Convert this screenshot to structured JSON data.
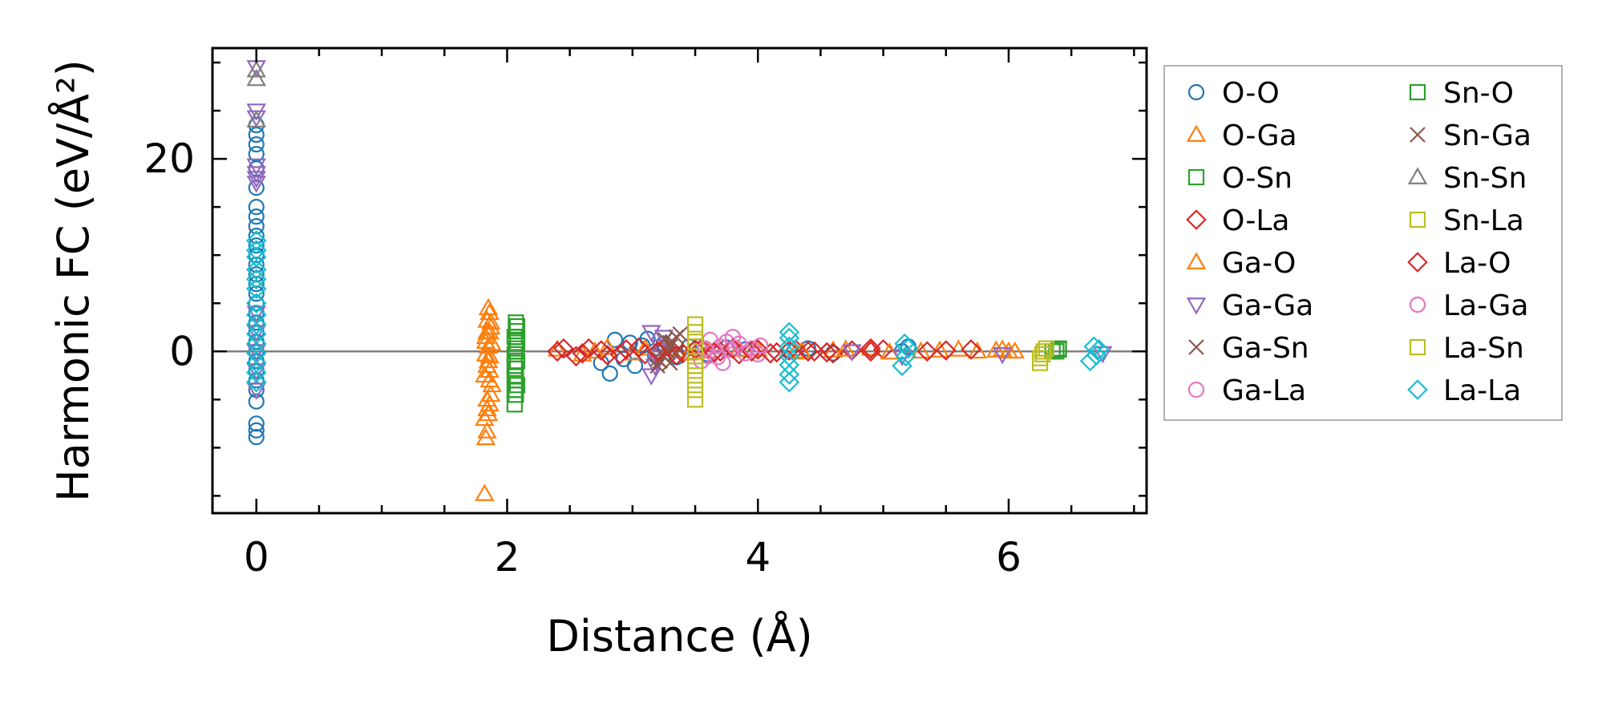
{
  "chart_data": {
    "type": "scatter",
    "title": "",
    "xlabel": "Distance (Å)",
    "ylabel": "Harmonic FC (eV/Å²)",
    "xlim": [
      -0.35,
      7.1
    ],
    "ylim": [
      -16.8,
      31.5
    ],
    "xticks": [
      0,
      2,
      4,
      6
    ],
    "xtick_labels": [
      "0",
      "2",
      "4",
      "6"
    ],
    "yticks": [
      0,
      20
    ],
    "ytick_labels": [
      "0",
      "20"
    ],
    "grid": false,
    "zero_line": true,
    "legend_placement": "outside-right",
    "series": [
      {
        "name": "O-O",
        "marker": "circle",
        "color": "#1f77b4",
        "x": [
          0,
          0,
          0,
          0,
          0,
          0,
          0,
          0,
          0,
          0,
          0,
          0,
          0,
          0,
          0,
          0,
          0,
          0,
          0,
          0,
          0,
          0,
          0,
          0,
          0,
          0,
          0,
          0,
          0,
          0,
          2.75,
          2.82,
          2.86,
          2.93,
          2.98,
          3.02,
          3.08,
          3.12,
          3.18,
          3.25,
          3.35,
          3.45,
          3.6,
          3.75,
          3.9,
          4.25,
          4.4,
          4.6,
          5.15,
          5.2
        ],
        "y": [
          -8.9,
          -8.2,
          -7.5,
          -5.2,
          -4.0,
          -3.0,
          -2.0,
          -1.0,
          0,
          1.0,
          2.0,
          3.0,
          4.0,
          5.0,
          6.0,
          7.0,
          8.0,
          9.0,
          10.0,
          11.0,
          12.0,
          13.0,
          14.0,
          15.0,
          17.0,
          19.0,
          20.5,
          21.5,
          22.5,
          23.5,
          -1.2,
          -2.3,
          1.2,
          -0.8,
          0.9,
          -1.5,
          0.6,
          1.3,
          -0.4,
          0.8,
          -0.6,
          0.5,
          -0.3,
          0.4,
          0.2,
          0.0,
          0.3,
          -0.2,
          0.0,
          0.5
        ]
      },
      {
        "name": "O-Ga",
        "marker": "triangle-up",
        "color": "#ff7f0e",
        "x": [
          1.82,
          1.83,
          1.84,
          1.85,
          1.86,
          1.87,
          1.88,
          1.82,
          1.84,
          1.86,
          1.85,
          1.83,
          1.87,
          1.84,
          1.86,
          1.85,
          1.83,
          1.88,
          1.84,
          1.86,
          2.4,
          2.6,
          2.8,
          3.0,
          3.3,
          3.6,
          4.0,
          4.3,
          4.6,
          4.9,
          5.3,
          5.6,
          5.9,
          6.0
        ],
        "y": [
          -14.8,
          -9.0,
          -8.3,
          -6.5,
          -5.5,
          -4.5,
          -3.5,
          -2.5,
          -1.5,
          -0.5,
          0.5,
          1.5,
          2.5,
          3.2,
          4.0,
          4.5,
          -0.3,
          0.8,
          2.0,
          -2.0,
          0.2,
          -0.3,
          0.4,
          -0.2,
          0.3,
          0.0,
          0.2,
          -0.1,
          0.1,
          0.3,
          0.0,
          0.2,
          0.1,
          0.0
        ]
      },
      {
        "name": "O-Sn",
        "marker": "square",
        "color": "#2ca02c",
        "x": [
          2.06,
          2.07,
          2.08,
          2.06,
          2.07,
          2.08,
          2.06,
          2.07,
          2.08,
          2.06,
          2.07,
          2.08,
          2.07,
          2.06,
          2.08,
          6.38,
          6.4
        ],
        "y": [
          -5.5,
          -4.5,
          -3.5,
          -2.6,
          -1.8,
          -1.0,
          -0.3,
          0.3,
          0.9,
          1.5,
          2.1,
          2.6,
          3.0,
          -4.0,
          1.2,
          0.0,
          0.3
        ]
      },
      {
        "name": "O-La",
        "marker": "diamond",
        "color": "#d62728",
        "x": [
          2.4,
          2.55,
          2.65,
          2.8,
          2.95,
          3.1,
          3.25,
          3.4,
          3.55,
          3.7,
          3.85,
          4.0,
          4.15,
          4.3,
          4.45,
          4.6,
          4.75,
          4.9,
          5.0
        ],
        "y": [
          0.0,
          -0.5,
          0.3,
          -0.4,
          0.2,
          -0.3,
          0.4,
          -0.2,
          0.3,
          0.0,
          -0.3,
          0.2,
          -0.1,
          0.2,
          0.0,
          -0.2,
          0.1,
          0.0,
          0.2
        ]
      },
      {
        "name": "Ga-O",
        "marker": "triangle-up",
        "color": "#ff7f0e",
        "x": [
          1.82,
          1.84,
          1.86,
          1.85,
          1.83,
          1.87,
          1.84,
          1.86,
          2.7,
          3.1,
          3.45,
          3.85,
          4.35,
          4.7,
          5.05,
          5.45,
          5.75,
          5.95,
          6.05
        ],
        "y": [
          -7.0,
          -5.0,
          -3.0,
          -1.0,
          1.0,
          3.0,
          -6.0,
          2.0,
          0.0,
          0.3,
          -0.2,
          0.2,
          0.0,
          0.2,
          -0.1,
          0.1,
          0.0,
          0.2,
          0.0
        ]
      },
      {
        "name": "Ga-Ga",
        "marker": "triangle-down",
        "color": "#9467bd",
        "x": [
          0,
          0,
          0,
          0,
          0,
          0,
          0,
          0,
          0,
          0,
          0,
          0,
          3.15,
          3.18,
          3.2,
          3.22,
          3.25,
          3.15,
          3.2,
          4.75,
          5.15,
          5.95,
          6.75
        ],
        "y": [
          -4.0,
          -2.0,
          0.0,
          2.0,
          4.0,
          17.5,
          18.0,
          18.5,
          19.3,
          24.3,
          25.0,
          29.5,
          -2.5,
          -1.5,
          -0.5,
          0.5,
          1.5,
          2.0,
          -1.0,
          0.0,
          -0.5,
          -0.3,
          -0.2
        ]
      },
      {
        "name": "Ga-Sn",
        "marker": "x",
        "color": "#8c564b",
        "x": [
          3.2,
          3.22,
          3.25,
          3.28,
          3.3,
          3.32,
          3.35,
          3.38,
          3.3,
          3.26
        ],
        "y": [
          -1.5,
          -1.0,
          -0.5,
          0.0,
          0.5,
          1.0,
          1.5,
          1.8,
          -1.2,
          1.2
        ]
      },
      {
        "name": "Ga-La",
        "marker": "circle",
        "color": "#e377c2",
        "x": [
          3.55,
          3.6,
          3.65,
          3.7,
          3.75,
          3.8,
          3.85,
          3.95,
          4.0,
          3.62,
          3.72,
          3.78
        ],
        "y": [
          -1.0,
          -0.5,
          0.0,
          0.5,
          1.0,
          1.5,
          0.8,
          0.3,
          -0.3,
          1.2,
          -1.2,
          0.2
        ]
      },
      {
        "name": "Sn-O",
        "marker": "square",
        "color": "#2ca02c",
        "x": [
          2.06,
          2.07,
          2.08,
          2.07,
          6.35,
          6.4
        ],
        "y": [
          -1.5,
          0.0,
          1.5,
          -3.0,
          0.0,
          0.2
        ]
      },
      {
        "name": "Sn-Ga",
        "marker": "x",
        "color": "#8c564b",
        "x": [
          3.2,
          3.25,
          3.3,
          3.35
        ],
        "y": [
          -0.8,
          0.2,
          0.9,
          -0.2
        ]
      },
      {
        "name": "Sn-Sn",
        "marker": "triangle-up",
        "color": "#7f7f7f",
        "x": [
          0,
          0,
          0
        ],
        "y": [
          24.0,
          28.3,
          29.2
        ]
      },
      {
        "name": "Sn-La",
        "marker": "square",
        "color": "#bcbd22",
        "x": [
          3.5,
          3.5,
          3.5,
          3.5,
          3.5,
          3.5,
          3.5,
          3.5,
          3.5,
          6.25,
          6.27,
          6.3
        ],
        "y": [
          -5.0,
          -4.0,
          -3.0,
          -2.0,
          -1.0,
          0.0,
          1.0,
          2.0,
          2.8,
          -1.2,
          -0.3,
          0.3
        ]
      },
      {
        "name": "La-O",
        "marker": "diamond",
        "color": "#d62728",
        "x": [
          2.45,
          2.6,
          2.75,
          2.9,
          3.05,
          3.2,
          3.35,
          3.5,
          3.65,
          3.8,
          3.95,
          4.1,
          4.25,
          4.4,
          4.55,
          4.9,
          5.35,
          5.5,
          5.7
        ],
        "y": [
          0.3,
          -0.2,
          0.1,
          -0.3,
          0.4,
          0.0,
          -0.4,
          0.2,
          -0.1,
          0.3,
          0.0,
          -0.2,
          0.1,
          0.0,
          -0.1,
          0.3,
          0.0,
          0.1,
          0.2
        ]
      },
      {
        "name": "La-Ga",
        "marker": "circle",
        "color": "#e377c2",
        "x": [
          3.58,
          3.68,
          3.82,
          3.9,
          4.02
        ],
        "y": [
          0.3,
          -0.6,
          0.4,
          -0.2,
          0.6
        ]
      },
      {
        "name": "La-Sn",
        "marker": "square",
        "color": "#bcbd22",
        "x": [
          3.5,
          3.5,
          6.25,
          6.28
        ],
        "y": [
          -1.5,
          0.5,
          -0.7,
          0.0
        ]
      },
      {
        "name": "La-La",
        "marker": "diamond",
        "color": "#17becf",
        "x": [
          0,
          0,
          0,
          0,
          0,
          0,
          0,
          0,
          0,
          0,
          0,
          0,
          0,
          0,
          0,
          4.25,
          4.25,
          4.25,
          4.25,
          4.25,
          4.25,
          4.25,
          5.15,
          5.18,
          5.2,
          5.17,
          6.65,
          6.7,
          6.72,
          6.68
        ],
        "y": [
          -3.2,
          -2.2,
          -1.2,
          -0.2,
          0.8,
          1.8,
          2.8,
          3.8,
          5.0,
          6.5,
          7.5,
          8.5,
          9.8,
          10.5,
          11.5,
          -3.2,
          -2.4,
          -1.4,
          -0.5,
          0.5,
          1.4,
          2.0,
          -1.5,
          -0.5,
          0.3,
          0.8,
          -1.0,
          -0.4,
          0.2,
          0.5
        ]
      }
    ]
  },
  "legend": {
    "column1": [
      "O-O",
      "O-Ga",
      "O-Sn",
      "O-La",
      "Ga-O",
      "Ga-Ga",
      "Ga-Sn",
      "Ga-La"
    ],
    "column2": [
      "Sn-O",
      "Sn-Ga",
      "Sn-Sn",
      "Sn-La",
      "La-O",
      "La-Ga",
      "La-Sn",
      "La-La"
    ]
  }
}
